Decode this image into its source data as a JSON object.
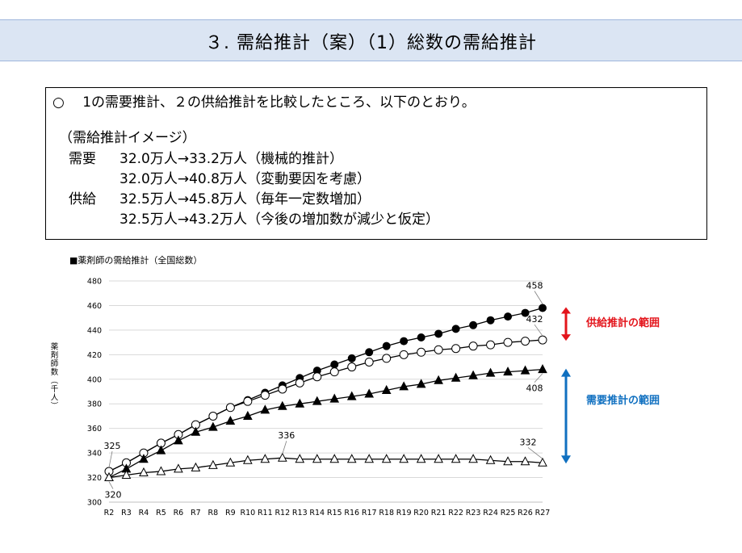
{
  "header": {
    "title": "３. 需給推計（案）（1）総数の需給推計"
  },
  "summary": {
    "lead": "○　 1の需要推計、２の供給推計を比較したところ、以下のとおり。",
    "image_heading": "（需給推計イメージ）",
    "rows": [
      {
        "label": "需要",
        "text": "32.0万人→33.2万人（機械的推計）"
      },
      {
        "label": "",
        "text": "32.0万人→40.8万人（変動要因を考慮）"
      },
      {
        "label": "供給",
        "text": "32.5万人→45.8万人（毎年一定数増加）"
      },
      {
        "label": "",
        "text": "32.5万人→43.2万人（今後の増加数が減少と仮定）"
      }
    ]
  },
  "chart_data": {
    "type": "line",
    "title": "■薬剤師の需給推計（全国総数）",
    "ylabel": "薬剤師数（千人）",
    "ylim": [
      300,
      480
    ],
    "yticks": [
      300,
      320,
      340,
      360,
      380,
      400,
      420,
      440,
      460,
      480
    ],
    "grid": true,
    "categories": [
      "R2",
      "R3",
      "R4",
      "R5",
      "R6",
      "R7",
      "R8",
      "R9",
      "R10",
      "R11",
      "R12",
      "R13",
      "R14",
      "R15",
      "R16",
      "R17",
      "R18",
      "R19",
      "R20",
      "R21",
      "R22",
      "R23",
      "R24",
      "R25",
      "R26",
      "R27"
    ],
    "series": [
      {
        "marker": "filled-circle",
        "values": [
          325,
          332,
          340,
          348,
          355,
          363,
          370,
          377,
          383,
          389,
          395,
          401,
          407,
          412,
          417,
          422,
          427,
          431,
          434,
          437,
          441,
          444,
          448,
          451,
          454,
          458
        ]
      },
      {
        "marker": "open-circle",
        "values": [
          325,
          332,
          340,
          348,
          355,
          363,
          370,
          377,
          382,
          387,
          392,
          397,
          402,
          406,
          410,
          414,
          417,
          420,
          422,
          424,
          425,
          427,
          428,
          430,
          431,
          432
        ]
      },
      {
        "marker": "filled-triangle",
        "values": [
          320,
          327,
          335,
          342,
          350,
          357,
          361,
          366,
          370,
          375,
          378,
          380,
          382,
          384,
          386,
          388,
          391,
          394,
          396,
          399,
          401,
          403,
          405,
          406,
          407,
          408
        ]
      },
      {
        "marker": "open-triangle",
        "values": [
          320,
          322,
          324,
          325,
          327,
          328,
          330,
          332,
          334,
          335,
          336,
          335,
          335,
          335,
          335,
          335,
          335,
          335,
          335,
          335,
          335,
          335,
          334,
          333,
          333,
          332
        ]
      }
    ],
    "data_labels": [
      {
        "category": "R27",
        "value": 458,
        "text": "458"
      },
      {
        "category": "R27",
        "value": 432,
        "text": "432"
      },
      {
        "category": "R27",
        "value": 408,
        "text": "408"
      },
      {
        "category": "R27",
        "value": 332,
        "text": "332"
      },
      {
        "category": "R12",
        "value": 336,
        "text": "336"
      },
      {
        "category": "R2",
        "value": 325,
        "text": "325"
      },
      {
        "category": "R2",
        "value": 320,
        "text": "320"
      }
    ],
    "annotations": [
      {
        "text": "供給推計の範囲",
        "color": "#e3141b",
        "range": [
          432,
          458
        ]
      },
      {
        "text": "需要推計の範囲",
        "color": "#1070c0",
        "range": [
          332,
          408
        ]
      }
    ]
  }
}
